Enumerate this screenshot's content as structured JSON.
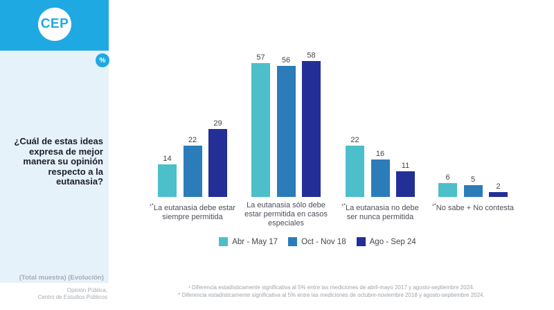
{
  "sidebar": {
    "logo_text": "CEP",
    "badge_label": "%",
    "question": "¿Cuál de estas ideas expresa de mejor manera su opinión respecto a la eutanasia?",
    "sample_note": "(Total muestra) (Evolución)"
  },
  "footer": {
    "source_line1": "Opinión Pública,",
    "source_line2": "Centro de Estudios Públicos"
  },
  "footnotes": {
    "line1": "¹ Diferencia estadísticamente significativa al 5% entre las mediciones de abril-mayo 2017 y agosto-septiembre 2024.",
    "line2": "* Diferencia estadísticamente significativa al 5% entre las mediciones de octubre-noviembre 2018 y agosto-septiembre 2024."
  },
  "colors": {
    "brand_cyan": "#1FA9E2",
    "sidebar_bg": "#E6F2FA",
    "series_teal": "#4CBFCA",
    "series_blue": "#2C7CBA",
    "series_navy": "#232F96"
  },
  "chart_data": {
    "type": "bar",
    "title": "¿Cuál de estas ideas expresa de mejor manera su opinión respecto a la eutanasia?",
    "unit": "%",
    "xlabel": "",
    "ylabel": "",
    "ylim": [
      0,
      60
    ],
    "grid": false,
    "value_labels": true,
    "legend_position": "bottom",
    "categories": [
      {
        "marker": "¹*",
        "label": "La eutanasia debe estar siempre permitida"
      },
      {
        "marker": "",
        "label": "La eutanasia sólo debe estar permitida en casos especiales"
      },
      {
        "marker": "¹*",
        "label": "La eutanasia no debe ser nunca permitida"
      },
      {
        "marker": "¹*",
        "label": "No sabe + No contesta"
      }
    ],
    "series": [
      {
        "name": "Abr - May 17",
        "color": "#4CBFCA",
        "values": [
          14,
          57,
          22,
          6
        ]
      },
      {
        "name": "Oct - Nov 18",
        "color": "#2C7CBA",
        "values": [
          22,
          56,
          16,
          5
        ]
      },
      {
        "name": "Ago - Sep 24",
        "color": "#232F96",
        "values": [
          29,
          58,
          11,
          2
        ]
      }
    ]
  }
}
